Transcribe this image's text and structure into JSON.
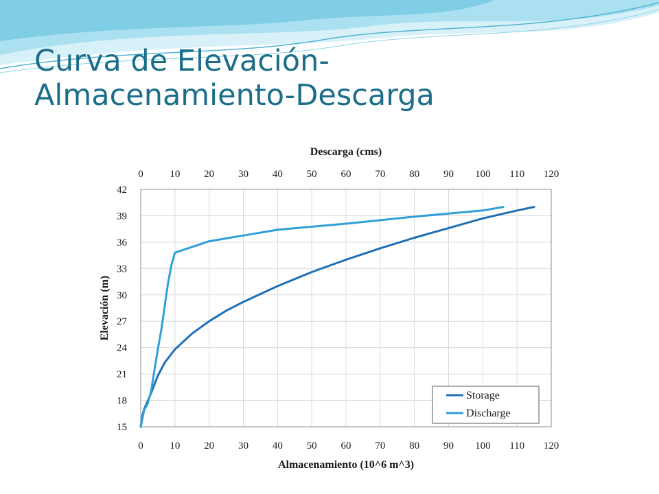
{
  "slide": {
    "title_line1": "Curva de Elevación-",
    "title_line2": "Almacenamiento-Descarga",
    "title_color": "#1b6e8a"
  },
  "chart_data": {
    "type": "line",
    "top_axis_title": "Descarga (cms)",
    "bottom_axis_title": "Almacenamiento (10^6 m^3)",
    "ylabel": "Elevación (m)",
    "xlim": [
      0,
      120
    ],
    "ylim": [
      15,
      42
    ],
    "x_ticks": [
      0,
      10,
      20,
      30,
      40,
      50,
      60,
      70,
      80,
      90,
      100,
      110,
      120
    ],
    "y_ticks": [
      15,
      18,
      21,
      24,
      27,
      30,
      33,
      36,
      39,
      42
    ],
    "grid": true,
    "legend_position": "bottom-right",
    "series": [
      {
        "name": "Storage",
        "axis": "bottom",
        "color": "#1f6fb5",
        "x": [
          0,
          0.5,
          1,
          2,
          3,
          4,
          5,
          7,
          10,
          15,
          20,
          25,
          30,
          40,
          50,
          60,
          70,
          80,
          90,
          100,
          110,
          115
        ],
        "y": [
          15,
          16.3,
          17.0,
          17.9,
          18.8,
          19.8,
          20.8,
          22.3,
          23.8,
          25.6,
          27.0,
          28.2,
          29.2,
          31.0,
          32.6,
          34.0,
          35.3,
          36.5,
          37.6,
          38.7,
          39.6,
          40.0
        ]
      },
      {
        "name": "Discharge",
        "axis": "top",
        "color": "#2f9fd8",
        "x": [
          0,
          1,
          2,
          3,
          4,
          5,
          6,
          7,
          8,
          9,
          10,
          20,
          40,
          60,
          80,
          100,
          106
        ],
        "y": [
          15,
          16.9,
          17.6,
          19.0,
          21.4,
          23.8,
          26.0,
          28.7,
          31.4,
          33.4,
          34.8,
          36.1,
          37.4,
          38.1,
          38.9,
          39.6,
          40.0
        ]
      }
    ]
  }
}
